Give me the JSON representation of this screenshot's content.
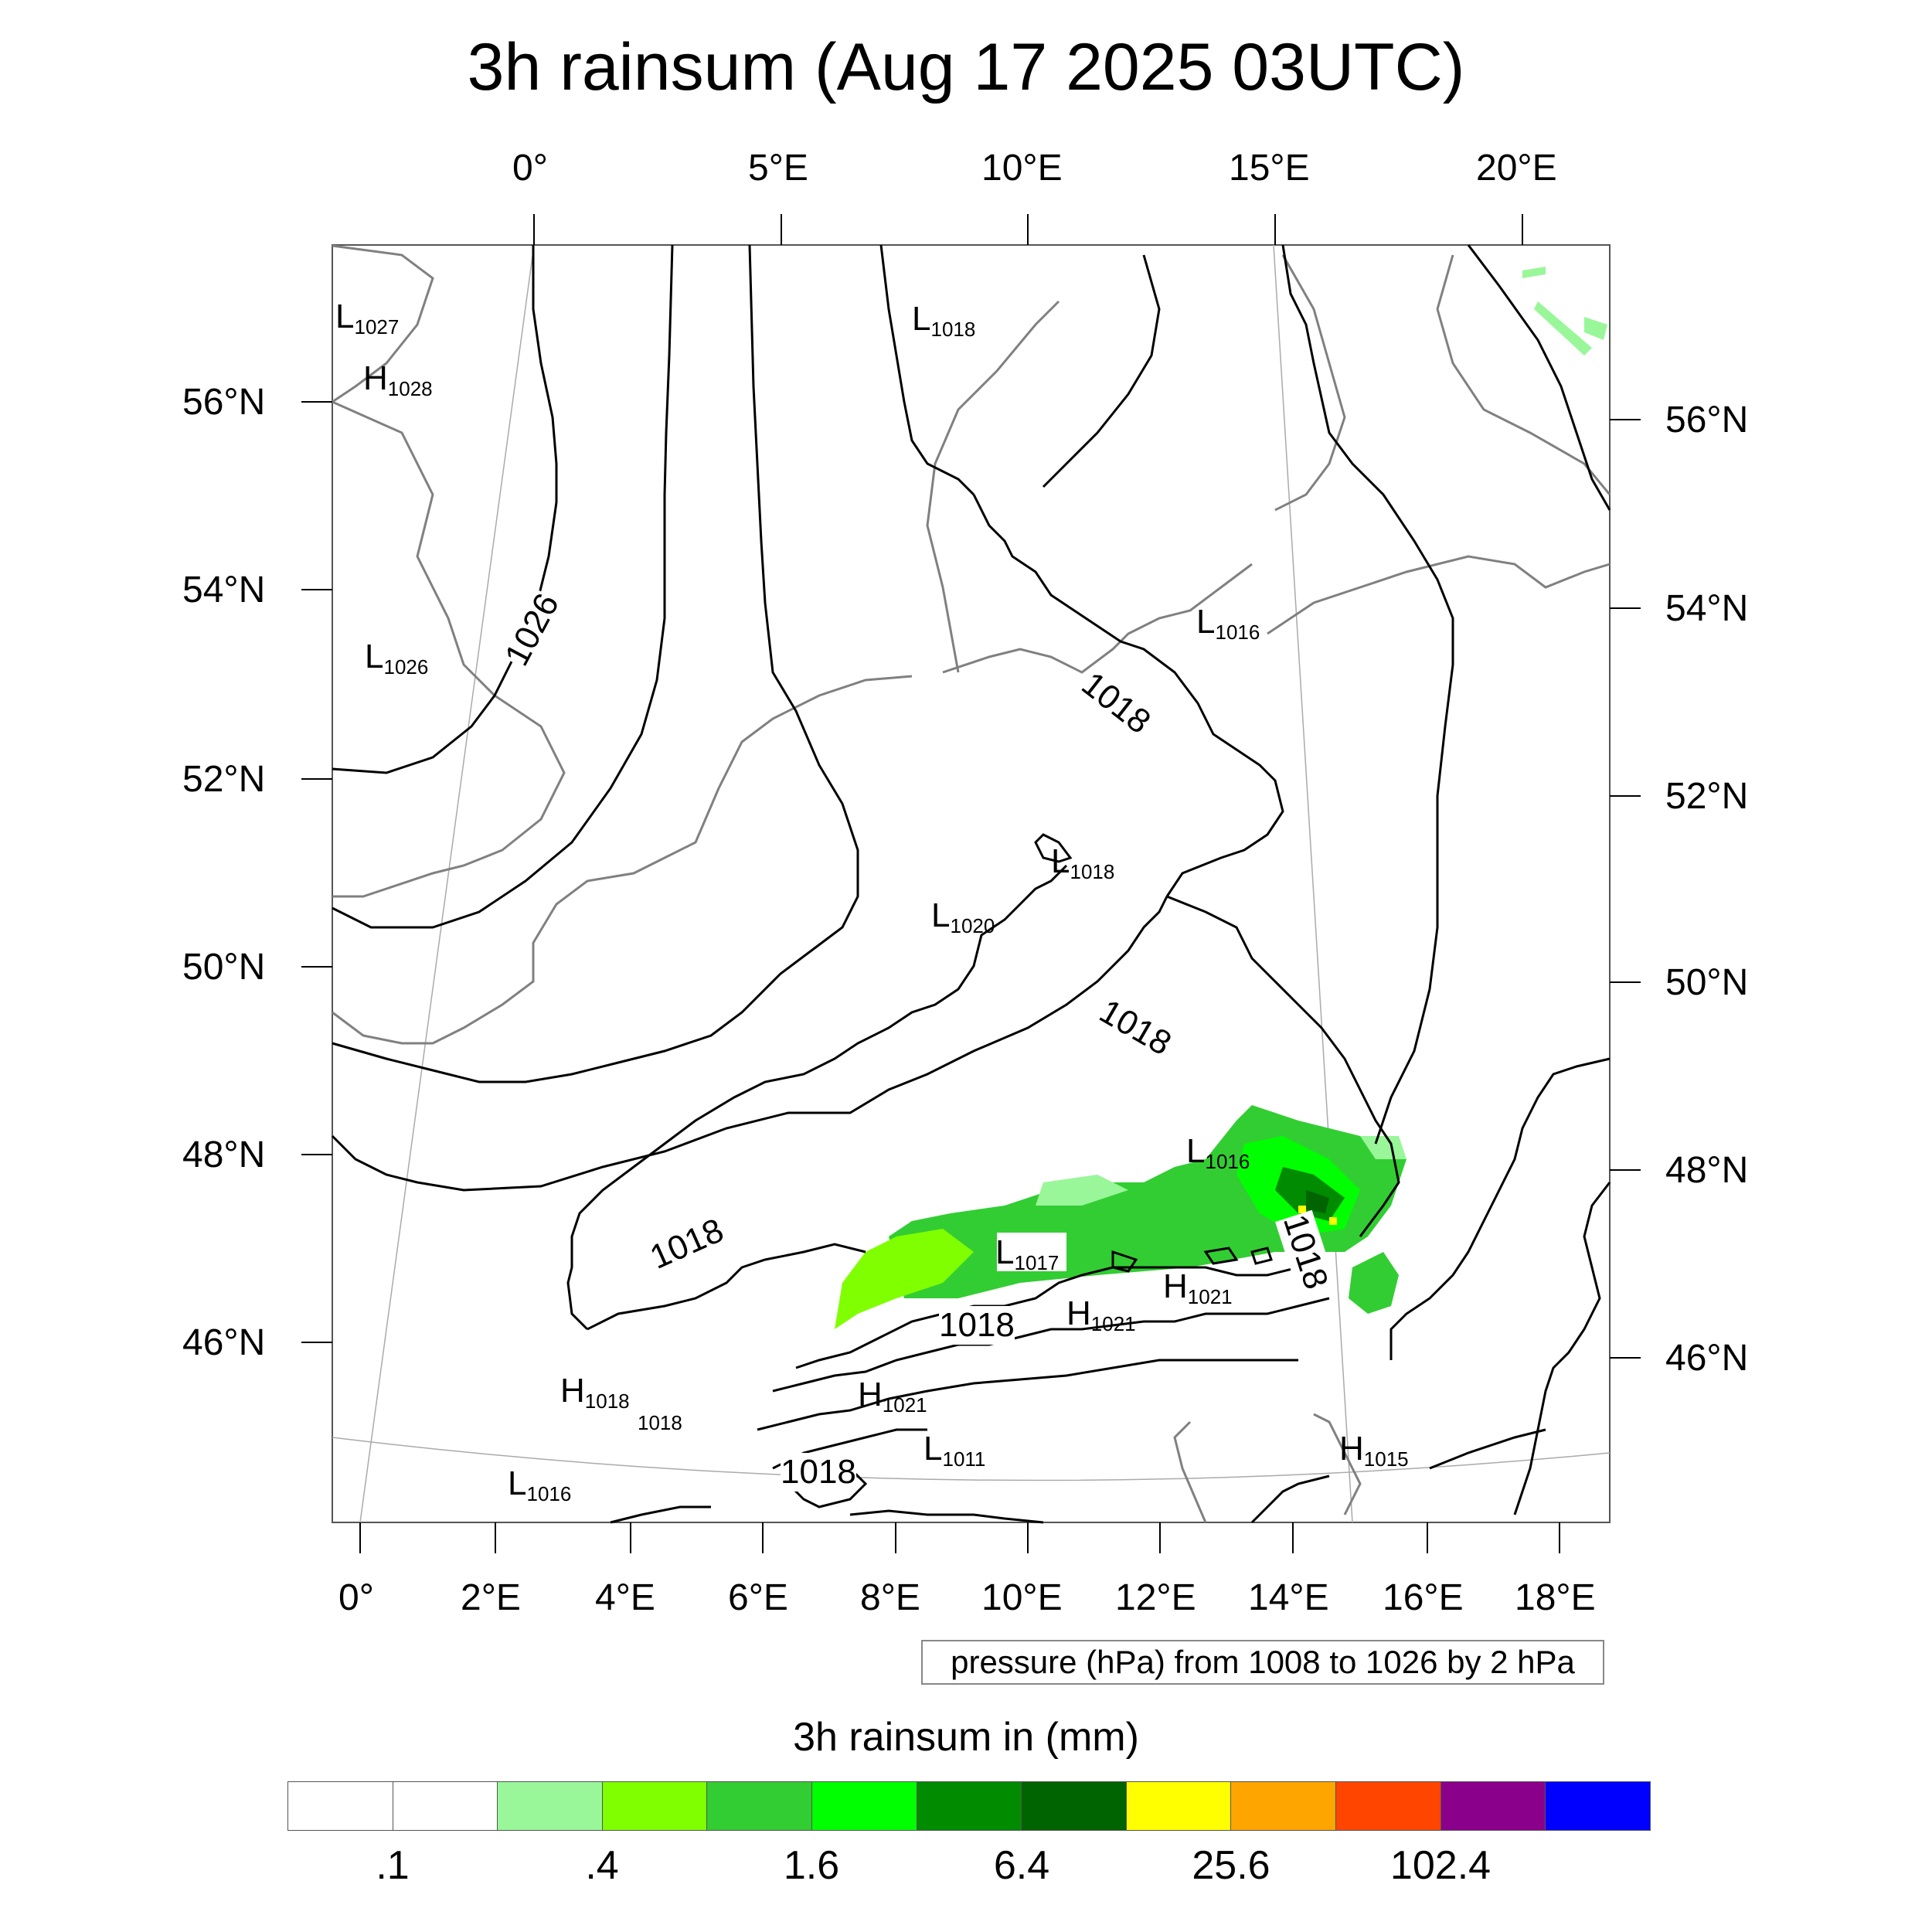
{
  "title": "3h rainsum (Aug 17 2025 03UTC)",
  "top_axis": [
    "0°",
    "5°E",
    "10°E",
    "15°E",
    "20°E"
  ],
  "bottom_axis": [
    "0°",
    "2°E",
    "4°E",
    "6°E",
    "8°E",
    "10°E",
    "12°E",
    "14°E",
    "16°E",
    "18°E"
  ],
  "left_axis": [
    "56°N",
    "54°N",
    "52°N",
    "50°N",
    "48°N",
    "46°N"
  ],
  "right_axis": [
    "56°N",
    "54°N",
    "52°N",
    "50°N",
    "48°N",
    "46°N"
  ],
  "pressure_centers": [
    {
      "letter": "L",
      "value": "1027"
    },
    {
      "letter": "H",
      "value": "1028"
    },
    {
      "letter": "L",
      "value": "1018"
    },
    {
      "letter": "L",
      "value": "1026"
    },
    {
      "letter": "L",
      "value": "1016"
    },
    {
      "letter": "L",
      "value": "1018"
    },
    {
      "letter": "L",
      "value": "1020"
    },
    {
      "letter": "L",
      "value": "1016"
    },
    {
      "letter": "L",
      "value": "1017"
    },
    {
      "letter": "H",
      "value": "1021"
    },
    {
      "letter": "H",
      "value": "1021"
    },
    {
      "letter": "H",
      "value": "1018"
    },
    {
      "letter": "H",
      "value": "1021"
    },
    {
      "letter": "L",
      "value": "1011"
    },
    {
      "letter": "H",
      "value": "1015"
    },
    {
      "letter": "L",
      "value": "1016"
    }
  ],
  "small_value_labels": [
    "1018"
  ],
  "contour_labels": [
    "1026",
    "1018",
    "1018",
    "1018",
    "1018",
    "1018",
    "1018"
  ],
  "pressure_note": "pressure (hPa) from 1008 to 1026 by 2 hPa",
  "colorbar": {
    "title": "3h rainsum in (mm)",
    "colors": [
      "#ffffff",
      "#ffffff",
      "#99f799",
      "#7fff00",
      "#32cd32",
      "#00ff00",
      "#008b00",
      "#006400",
      "#ffff00",
      "#ffa500",
      "#ff4500",
      "#8b008b",
      "#0000ff"
    ],
    "labels": [
      ".1",
      ".4",
      "1.6",
      "6.4",
      "25.6",
      "102.4"
    ]
  }
}
